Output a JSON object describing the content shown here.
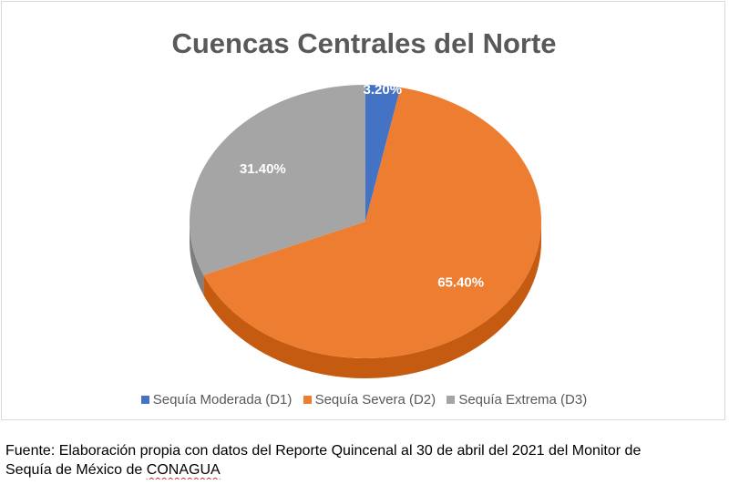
{
  "chart_data": {
    "type": "pie",
    "title": "Cuencas Centrales del Norte",
    "categories": [
      "Sequía Moderada (D1)",
      "Sequía Severa (D2)",
      "Sequía Extrema (D3)"
    ],
    "values": [
      3.2,
      65.4,
      31.4
    ],
    "data_labels": [
      "3.20%",
      "65.40%",
      "31.40%"
    ],
    "colors": [
      "#4472c4",
      "#ed7d31",
      "#a5a5a5"
    ],
    "side_colors": [
      "#2f5597",
      "#c55a11",
      "#7f7f7f"
    ],
    "legend_position": "bottom",
    "style": "3d"
  },
  "caption": {
    "line1": "Fuente: Elaboración propia con datos del Reporte Quincenal al 30 de abril del 2021 del Monitor de",
    "line2_prefix": "Sequía de México de ",
    "line2_org": "CONAGUA"
  }
}
